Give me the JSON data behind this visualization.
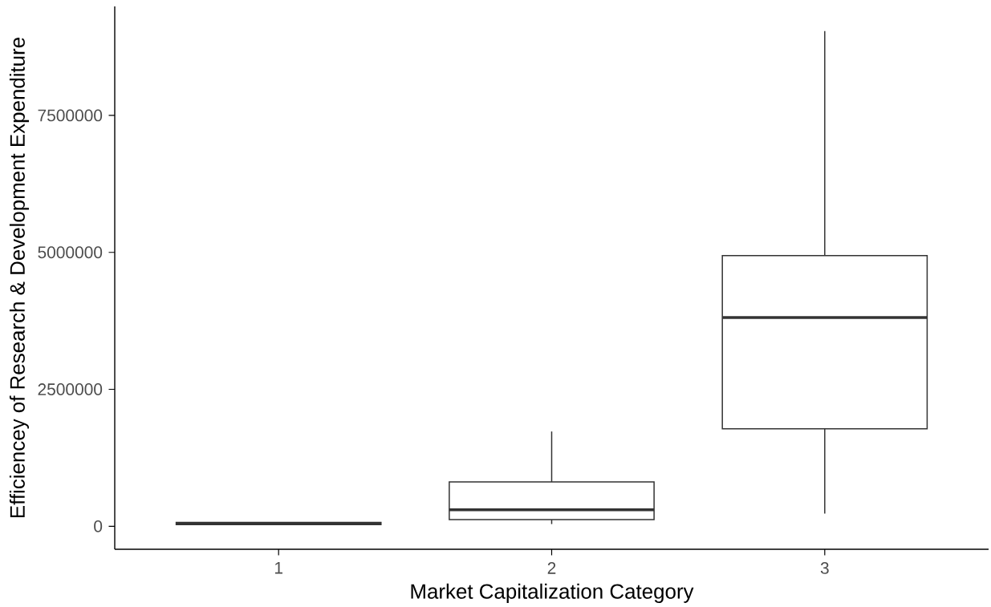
{
  "chart_data": {
    "type": "box",
    "xlabel": "Market Capitalization Category",
    "ylabel": "Efficiencey of Research & Development Expenditure",
    "categories": [
      "1",
      "2",
      "3"
    ],
    "boxes": [
      {
        "low": 30000,
        "q1": 30000,
        "median": 50000,
        "q3": 70000,
        "high": 70000
      },
      {
        "low": 40000,
        "q1": 120000,
        "median": 300000,
        "q3": 810000,
        "high": 1730000
      },
      {
        "low": 230000,
        "q1": 1780000,
        "median": 3810000,
        "q3": 4940000,
        "high": 9040000
      }
    ],
    "color": "#333333",
    "ylim": [
      -420000,
      9490000
    ],
    "yticks": [
      0,
      2500000,
      5000000,
      7500000
    ]
  }
}
